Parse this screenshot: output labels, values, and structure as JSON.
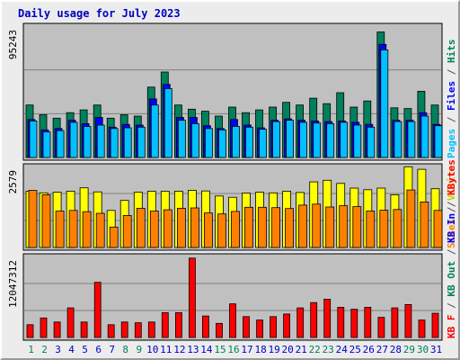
{
  "chart_data": {
    "title": "Daily usage for July 2023",
    "type": "bar",
    "categories": [
      "1",
      "2",
      "3",
      "4",
      "5",
      "6",
      "7",
      "8",
      "9",
      "10",
      "11",
      "12",
      "13",
      "14",
      "15",
      "16",
      "17",
      "18",
      "19",
      "20",
      "21",
      "22",
      "23",
      "24",
      "25",
      "26",
      "27",
      "28",
      "29",
      "30",
      "31"
    ],
    "weekend_days": [
      "1",
      "2",
      "8",
      "9",
      "15",
      "16",
      "22",
      "23",
      "29",
      "30"
    ],
    "panels": [
      {
        "id": "hits",
        "max_label": "95243",
        "ylim": [
          0,
          95243
        ],
        "side_labels": [
          {
            "text": "Hits",
            "color": "#00805c"
          },
          {
            "text": "/",
            "color": "#555555"
          },
          {
            "text": "Files",
            "color": "#0000ff"
          },
          {
            "text": "/",
            "color": "#555555"
          },
          {
            "text": "Pages",
            "color": "#00c0ff"
          }
        ],
        "series": [
          {
            "name": "Hits",
            "color": "#00805c",
            "values": [
              38000,
              31000,
              28500,
              32500,
              34500,
              38000,
              28500,
              31000,
              30000,
              51000,
              62000,
              38000,
              35000,
              33500,
              30000,
              36500,
              32500,
              34500,
              36500,
              40000,
              38000,
              43000,
              39000,
              47000,
              36500,
              41000,
              91000,
              36000,
              35500,
              48000,
              38000
            ]
          },
          {
            "name": "Files",
            "color": "#0000ff",
            "values": [
              27500,
              20000,
              21000,
              27000,
              24500,
              29000,
              22000,
              24000,
              23500,
              42500,
              53000,
              29000,
              29000,
              23000,
              21000,
              27500,
              23500,
              21500,
              27000,
              28000,
              27000,
              26500,
              26000,
              26500,
              25500,
              24000,
              82000,
              27000,
              27000,
              32500,
              24000
            ]
          },
          {
            "name": "Pages",
            "color": "#00c0ff",
            "values": [
              26500,
              18500,
              19500,
              25500,
              22500,
              23500,
              21000,
              21500,
              22000,
              38000,
              50000,
              27000,
              24500,
              21000,
              20000,
              22500,
              22000,
              20500,
              26000,
              27000,
              25500,
              25000,
              24500,
              25500,
              23500,
              22000,
              78000,
              26000,
              26000,
              30000,
              23000
            ]
          }
        ]
      },
      {
        "id": "visits",
        "max_label": "2579",
        "ylim": [
          0,
          2579
        ],
        "side_labels": [
          {
            "text": "Visits",
            "color": "#cccc00"
          },
          {
            "text": "/",
            "color": "#555555"
          },
          {
            "text": "Sites",
            "color": "#ff8000"
          }
        ],
        "series": [
          {
            "name": "Visits",
            "color": "#ffff00",
            "values": [
              1790,
              1740,
              1760,
              1790,
              1900,
              1770,
              1180,
              1500,
              1760,
              1790,
              1790,
              1790,
              1820,
              1800,
              1640,
              1600,
              1730,
              1760,
              1740,
              1790,
              1750,
              2090,
              2140,
              2040,
              1890,
              1840,
              1890,
              1680,
              2570,
              2490,
              1870
            ]
          },
          {
            "name": "Sites",
            "color": "#ff8000",
            "values": [
              1820,
              1680,
              1160,
              1180,
              1140,
              1090,
              650,
              1020,
              1250,
              1160,
              1200,
              1250,
              1260,
              1100,
              1070,
              1150,
              1280,
              1280,
              1270,
              1240,
              1350,
              1380,
              1290,
              1330,
              1300,
              1160,
              1190,
              1210,
              1830,
              1450,
              1180
            ]
          }
        ]
      },
      {
        "id": "kbytes",
        "max_label": "12047312",
        "ylim": [
          0,
          12047312
        ],
        "side_labels": [
          {
            "text": "KBytes",
            "color": "#ff0000"
          },
          {
            "text": "/",
            "color": "#555555"
          },
          {
            "text": "KB In",
            "color": "#0000ff"
          },
          {
            "text": "/",
            "color": "#555555"
          },
          {
            "text": "KB Out",
            "color": "#00805c"
          },
          {
            "text": "/",
            "color": "#555555"
          },
          {
            "text": "KB F",
            "color": "#ff0000"
          }
        ],
        "side_label_text": "kB F / kB In / kB Out",
        "series": [
          {
            "name": "kB F",
            "color": "#ff0000",
            "values": [
              1900000,
              2900000,
              2300000,
              4400000,
              2300000,
              8200000,
              1900000,
              2300000,
              2200000,
              2300000,
              3700000,
              3700000,
              11800000,
              3200000,
              2100000,
              5000000,
              3100000,
              2600000,
              3100000,
              3500000,
              4400000,
              5200000,
              5700000,
              4500000,
              4200000,
              4500000,
              3000000,
              4400000,
              4900000,
              2600000,
              3600000
            ]
          }
        ]
      }
    ]
  },
  "colors": {
    "background": "#ececec",
    "plot_background": "#c0c0c0",
    "title": "#0000c0",
    "weekend_label": "#00805c",
    "weekday_label": "#0000c0",
    "gridline": "#808080"
  }
}
